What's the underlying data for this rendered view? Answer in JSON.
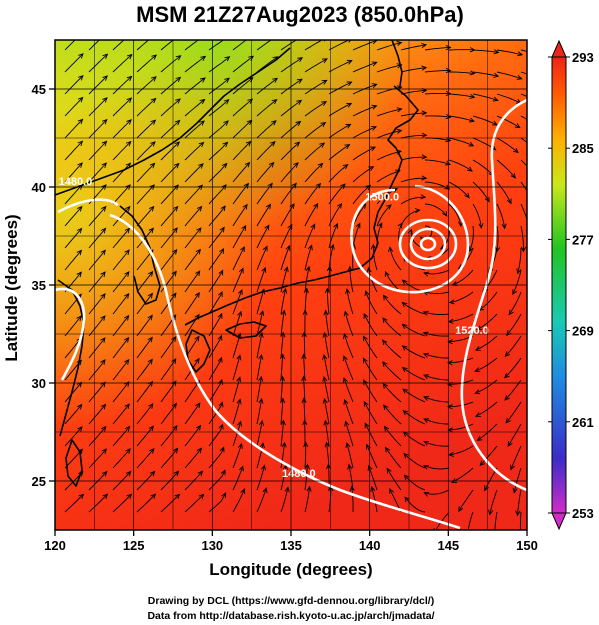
{
  "title": "MSM 21Z27Aug2023 (850.0hPa)",
  "x_axis": {
    "label": "Longitude (degrees)",
    "ticks": [
      120,
      125,
      130,
      135,
      140,
      145,
      150
    ],
    "tick_labels": [
      "120",
      "125",
      "130",
      "135",
      "140",
      "145",
      "150"
    ],
    "range": [
      120,
      150
    ]
  },
  "y_axis": {
    "label": "Latitude  (degrees)",
    "ticks": [
      25,
      30,
      35,
      40,
      45
    ],
    "tick_labels": [
      "25",
      "30",
      "35",
      "40",
      "45"
    ],
    "range": [
      22.5,
      47.5
    ]
  },
  "colorbar": {
    "ticks": [
      "293",
      "285",
      "277",
      "269",
      "261",
      "253"
    ],
    "range": [
      253,
      293
    ],
    "colors": [
      "#d22cc8",
      "#3a2cc8",
      "#1f8de0",
      "#19c9b4",
      "#21c421",
      "#c8e81a",
      "#ffb000",
      "#ff5a00",
      "#ee2418"
    ]
  },
  "contour_labels": [
    {
      "text": "1520.0",
      "lon": 146.5,
      "lat": 32.5
    },
    {
      "text": "1500.0",
      "lon": 140.8,
      "lat": 39.3
    },
    {
      "text": "1480.0",
      "lon": 121.3,
      "lat": 40.1
    },
    {
      "text": "1480.0",
      "lon": 135.5,
      "lat": 25.2
    }
  ],
  "credits": {
    "line1": "Drawing by DCL (https://www.gfd-dennou.org/library/dcl/)",
    "line2": "Data from http://database.rish.kyoto-u.ac.jp/arch/jmadata/"
  },
  "colors": {
    "warm": "#ff3a10",
    "cool": "#b8e01c",
    "contour": "#ffffff",
    "streamline": "#000000"
  }
}
